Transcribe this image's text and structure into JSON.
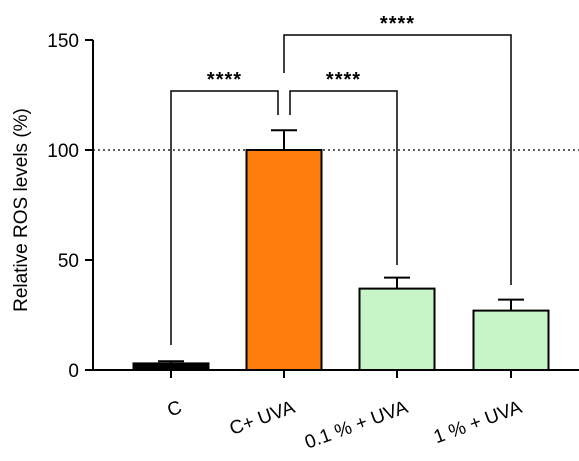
{
  "chart_data": {
    "type": "bar",
    "categories": [
      "C",
      "C+ UVA",
      "0.1 % + UVA",
      "1 % + UVA"
    ],
    "values": [
      3,
      100,
      37,
      27
    ],
    "errors": [
      1,
      9,
      5,
      5
    ],
    "bar_colors": [
      "#000000",
      "#ff7f0e",
      "#c8f5c8",
      "#c8f5c8"
    ],
    "ylabel": "Relative ROS levels (%)",
    "ylim": [
      0,
      150
    ],
    "yticks": [
      0,
      50,
      100,
      150
    ],
    "reference_line": 100,
    "grid": false,
    "significance": [
      {
        "from": 0,
        "to": 1,
        "label": "****"
      },
      {
        "from": 1,
        "to": 2,
        "label": "****"
      },
      {
        "from": 1,
        "to": 3,
        "label": "****"
      }
    ]
  }
}
